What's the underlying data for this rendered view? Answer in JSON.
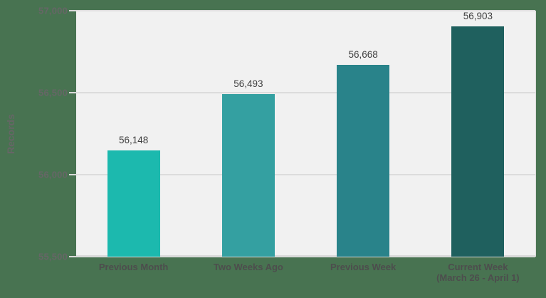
{
  "chart_data": {
    "type": "bar",
    "title": "",
    "xlabel": "",
    "ylabel": "Records",
    "categories": [
      "Previous Month",
      "Two Weeks Ago",
      "Previous Week",
      "Current Week\n(March 26 - April 1)"
    ],
    "values": [
      56148,
      56493,
      56668,
      56903
    ],
    "value_labels": [
      "56,148",
      "56,493",
      "56,668",
      "56,903"
    ],
    "bar_colors": [
      "#1cb9ae",
      "#34a0a1",
      "#29838a",
      "#1f605e"
    ],
    "ylim": [
      55500,
      57000
    ],
    "yticks": [
      {
        "value": 55500,
        "label": "55,500"
      },
      {
        "value": 56000,
        "label": "56,000"
      },
      {
        "value": 56500,
        "label": "56,500"
      },
      {
        "value": 57000,
        "label": "57,000"
      }
    ],
    "grid": true,
    "legend": false
  },
  "colors": {
    "background": "#487351",
    "plot_background": "#f1f1f1",
    "gridline": "#dcdcdc",
    "axis_line": "#d9d9d9",
    "y_tick_label": "#666666",
    "category_label": "#4d4d4d",
    "value_label": "#3f3f3f"
  }
}
